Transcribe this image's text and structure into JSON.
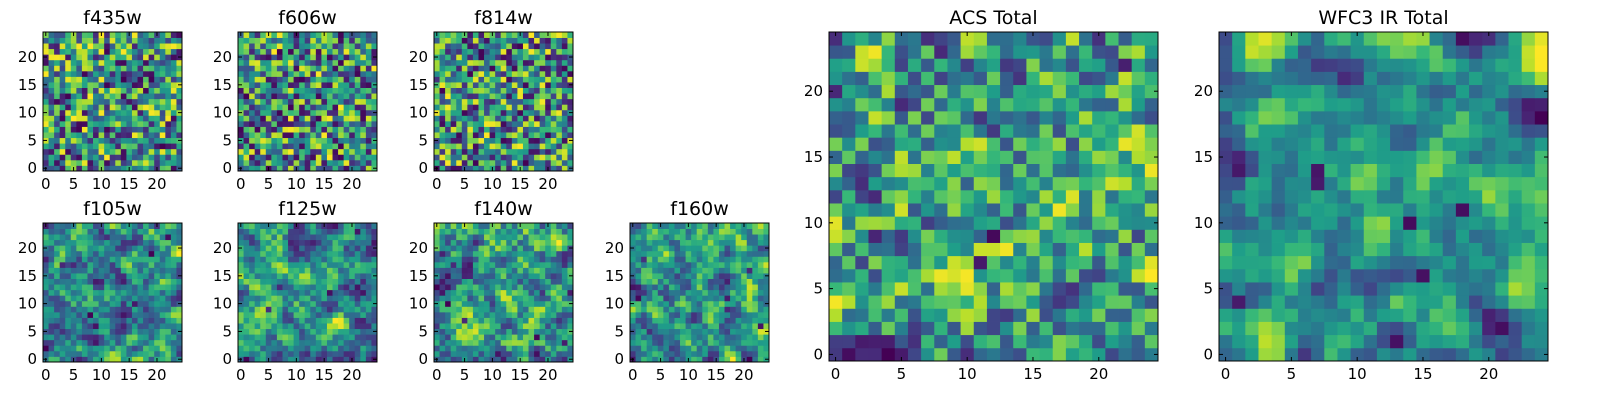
{
  "chart_data": [
    {
      "type": "heatmap",
      "title": "f435w",
      "xticks": [
        0,
        5,
        10,
        15,
        20
      ],
      "yticks": [
        0,
        5,
        10,
        15,
        20
      ],
      "xlim": [
        0,
        24
      ],
      "ylim": [
        0,
        24
      ],
      "grid_size": 25,
      "colormap": "viridis",
      "smoothness": 0,
      "seed": 11
    },
    {
      "type": "heatmap",
      "title": "f606w",
      "xticks": [
        0,
        5,
        10,
        15,
        20
      ],
      "yticks": [
        0,
        5,
        10,
        15,
        20
      ],
      "xlim": [
        0,
        24
      ],
      "ylim": [
        0,
        24
      ],
      "grid_size": 25,
      "colormap": "viridis",
      "smoothness": 0,
      "seed": 23
    },
    {
      "type": "heatmap",
      "title": "f814w",
      "xticks": [
        0,
        5,
        10,
        15,
        20
      ],
      "yticks": [
        0,
        5,
        10,
        15,
        20
      ],
      "xlim": [
        0,
        24
      ],
      "ylim": [
        0,
        24
      ],
      "grid_size": 25,
      "colormap": "viridis",
      "smoothness": 0,
      "seed": 37
    },
    {
      "type": "heatmap",
      "title": "f105w",
      "xticks": [
        0,
        5,
        10,
        15,
        20
      ],
      "yticks": [
        0,
        5,
        10,
        15,
        20
      ],
      "xlim": [
        0,
        24
      ],
      "ylim": [
        0,
        24
      ],
      "grid_size": 25,
      "colormap": "viridis",
      "smoothness": 2,
      "seed": 41
    },
    {
      "type": "heatmap",
      "title": "f125w",
      "xticks": [
        0,
        5,
        10,
        15,
        20
      ],
      "yticks": [
        0,
        5,
        10,
        15,
        20
      ],
      "xlim": [
        0,
        24
      ],
      "ylim": [
        0,
        24
      ],
      "grid_size": 25,
      "colormap": "viridis",
      "smoothness": 2,
      "seed": 53
    },
    {
      "type": "heatmap",
      "title": "f140w",
      "xticks": [
        0,
        5,
        10,
        15,
        20
      ],
      "yticks": [
        0,
        5,
        10,
        15,
        20
      ],
      "xlim": [
        0,
        24
      ],
      "ylim": [
        0,
        24
      ],
      "grid_size": 25,
      "colormap": "viridis",
      "smoothness": 2,
      "seed": 67
    },
    {
      "type": "heatmap",
      "title": "f160w",
      "xticks": [
        0,
        5,
        10,
        15,
        20
      ],
      "yticks": [
        0,
        5,
        10,
        15,
        20
      ],
      "xlim": [
        0,
        24
      ],
      "ylim": [
        0,
        24
      ],
      "grid_size": 25,
      "colormap": "viridis",
      "smoothness": 2,
      "seed": 79
    },
    {
      "type": "heatmap",
      "title": "ACS Total",
      "xticks": [
        0,
        5,
        10,
        15,
        20
      ],
      "yticks": [
        0,
        5,
        10,
        15,
        20
      ],
      "xlim": [
        0,
        24
      ],
      "ylim": [
        0,
        24
      ],
      "grid_size": 25,
      "colormap": "viridis",
      "smoothness": 1,
      "seed": 97
    },
    {
      "type": "heatmap",
      "title": "WFC3 IR Total",
      "xticks": [
        0,
        5,
        10,
        15,
        20
      ],
      "yticks": [
        0,
        5,
        10,
        15,
        20
      ],
      "xlim": [
        0,
        24
      ],
      "ylim": [
        0,
        24
      ],
      "grid_size": 25,
      "colormap": "viridis",
      "smoothness": 3,
      "seed": 113
    }
  ]
}
